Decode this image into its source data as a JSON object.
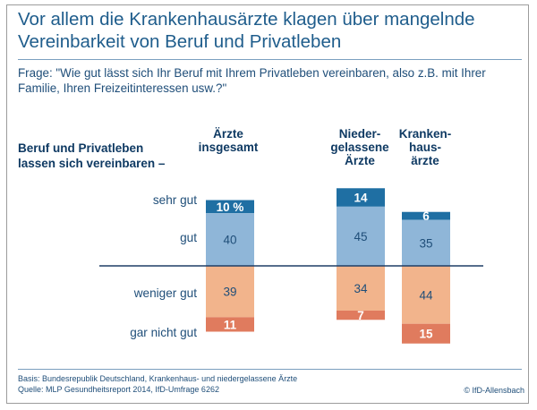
{
  "title_line1": "Vor allem die Krankenhausärzte klagen über mangelnde",
  "title_line2": "Vereinbarkeit von Beruf und Privatleben",
  "question_line1": "Frage: \"Wie gut lässt sich Ihr Beruf mit Ihrem Privatleben vereinbaren, also z.B. mit Ihrer",
  "question_line2": "Familie, Ihren Freizeitinteressen usw.?\"",
  "row_heading_line1": "Beruf und Privatleben",
  "row_heading_line2": "lassen sich vereinbaren –",
  "footer_line1": "Basis: Bundesrepublik Deutschland, Krankenhaus- und niedergelassene Ärzte",
  "footer_line2": "Quelle: MLP Gesundheitsreport 2014, IfD-Umfrage 6262",
  "copyright": "© IfD-Allensbach",
  "colors": {
    "sehr_gut": "#1f6fa3",
    "gut": "#8fb6d8",
    "weniger_gut": "#f2b48c",
    "gar_nicht_gut": "#e07b5e",
    "baseline": "#1f3f66"
  },
  "chart_data": {
    "type": "bar",
    "subtype": "diverging-stacked",
    "categories": [
      [
        "Ärzte",
        "insgesamt"
      ],
      [
        "Nieder-",
        "gelassene",
        "Ärzte"
      ],
      [
        "Kranken-",
        "haus-",
        "ärzte"
      ]
    ],
    "row_labels": [
      "sehr gut",
      "gut",
      "weniger gut",
      "gar nicht gut"
    ],
    "series": [
      {
        "name": "sehr gut",
        "values": [
          10,
          14,
          6
        ],
        "labels": [
          "10 %",
          "14",
          "6"
        ]
      },
      {
        "name": "gut",
        "values": [
          40,
          45,
          35
        ],
        "labels": [
          "40",
          "45",
          "35"
        ]
      },
      {
        "name": "weniger gut",
        "values": [
          39,
          34,
          44
        ],
        "labels": [
          "39",
          "34",
          "44"
        ]
      },
      {
        "name": "gar nicht gut",
        "values": [
          11,
          7,
          15
        ],
        "labels": [
          "11",
          "7",
          "15"
        ]
      }
    ]
  }
}
